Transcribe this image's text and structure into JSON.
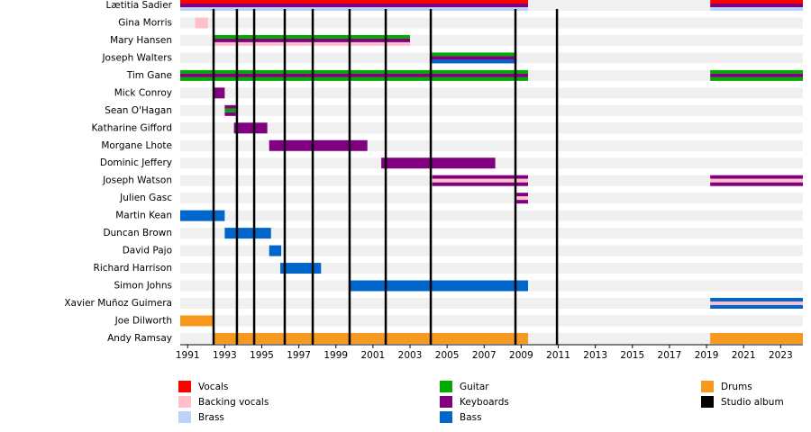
{
  "chart_data": {
    "type": "timeline",
    "xlim": [
      1990.6,
      2024.2
    ],
    "xticks": [
      1991,
      1993,
      1995,
      1997,
      1999,
      2001,
      2003,
      2005,
      2007,
      2009,
      2011,
      2013,
      2015,
      2017,
      2019,
      2021,
      2023
    ],
    "legend": [
      {
        "name": "Vocals",
        "color": "#ff0000"
      },
      {
        "name": "Backing vocals",
        "color": "#ffc0cb"
      },
      {
        "name": "Brass",
        "color": "#bcd2f7"
      },
      {
        "name": "Guitar",
        "color": "#00aa00"
      },
      {
        "name": "Keyboards",
        "color": "#800080"
      },
      {
        "name": "Bass",
        "color": "#0066cc"
      },
      {
        "name": "Drums",
        "color": "#f7991e"
      },
      {
        "name": "Studio album",
        "color": "#000000"
      }
    ],
    "albums": [
      1992.4,
      1993.66,
      1994.59,
      1996.24,
      1997.75,
      1999.74,
      2001.69,
      2004.12,
      2008.69,
      2010.93
    ],
    "members": [
      {
        "name": "Lætitia Sadier",
        "bars": [
          {
            "start": 1990.6,
            "end": 2009.37,
            "roles": [
              0,
              4,
              2
            ]
          },
          {
            "start": 2019.2,
            "end": 2024.2,
            "roles": [
              0,
              4,
              2
            ]
          }
        ]
      },
      {
        "name": "Gina Morris",
        "bars": [
          {
            "start": 1991.4,
            "end": 1992.1,
            "roles": [
              1
            ]
          }
        ]
      },
      {
        "name": "Mary Hansen",
        "bars": [
          {
            "start": 1992.4,
            "end": 2003.0,
            "roles": [
              3,
              4,
              1
            ]
          }
        ]
      },
      {
        "name": "Joseph Walters",
        "bars": [
          {
            "start": 2004.1,
            "end": 2008.75,
            "roles": [
              3,
              4,
              5
            ]
          }
        ]
      },
      {
        "name": "Tim Gane",
        "bars": [
          {
            "start": 1990.6,
            "end": 2009.37,
            "roles": [
              3,
              4,
              3
            ]
          },
          {
            "start": 2019.2,
            "end": 2024.2,
            "roles": [
              3,
              4,
              3
            ]
          }
        ]
      },
      {
        "name": "Mick Conroy",
        "bars": [
          {
            "start": 1992.4,
            "end": 1993.0,
            "roles": [
              4
            ]
          }
        ]
      },
      {
        "name": "Sean O'Hagan",
        "bars": [
          {
            "start": 1993.0,
            "end": 1993.6,
            "roles": [
              4,
              3,
              4
            ]
          }
        ]
      },
      {
        "name": "Katharine Gifford",
        "bars": [
          {
            "start": 1993.5,
            "end": 1995.3,
            "roles": [
              4
            ]
          }
        ]
      },
      {
        "name": "Morgane Lhote",
        "bars": [
          {
            "start": 1995.4,
            "end": 2000.7,
            "roles": [
              4
            ]
          }
        ]
      },
      {
        "name": "Dominic Jeffery",
        "bars": [
          {
            "start": 2001.45,
            "end": 2007.6,
            "roles": [
              4
            ]
          }
        ]
      },
      {
        "name": "Joseph Watson",
        "bars": [
          {
            "start": 2004.2,
            "end": 2009.37,
            "roles": [
              4,
              1,
              4
            ]
          },
          {
            "start": 2019.2,
            "end": 2024.2,
            "roles": [
              4,
              1,
              4
            ]
          }
        ]
      },
      {
        "name": "Julien Gasc",
        "bars": [
          {
            "start": 2008.75,
            "end": 2009.37,
            "roles": [
              4,
              1,
              4
            ]
          }
        ]
      },
      {
        "name": "Martin Kean",
        "bars": [
          {
            "start": 1990.6,
            "end": 1993.0,
            "roles": [
              5
            ]
          }
        ]
      },
      {
        "name": "Duncan Brown",
        "bars": [
          {
            "start": 1993.0,
            "end": 1995.5,
            "roles": [
              5
            ]
          }
        ]
      },
      {
        "name": "David Pajo",
        "bars": [
          {
            "start": 1995.4,
            "end": 1996.05,
            "roles": [
              5
            ]
          }
        ]
      },
      {
        "name": "Richard Harrison",
        "bars": [
          {
            "start": 1996.0,
            "end": 1998.2,
            "roles": [
              5
            ]
          }
        ]
      },
      {
        "name": "Simon Johns",
        "bars": [
          {
            "start": 1999.75,
            "end": 2009.37,
            "roles": [
              5
            ]
          }
        ]
      },
      {
        "name": "Xavier Muñoz Guimera",
        "bars": [
          {
            "start": 2019.2,
            "end": 2024.2,
            "roles": [
              5,
              1,
              5
            ]
          }
        ]
      },
      {
        "name": "Joe Dilworth",
        "bars": [
          {
            "start": 1990.6,
            "end": 1992.35,
            "roles": [
              6
            ]
          }
        ]
      },
      {
        "name": "Andy Ramsay",
        "bars": [
          {
            "start": 1992.4,
            "end": 2009.37,
            "roles": [
              6
            ]
          },
          {
            "start": 2019.2,
            "end": 2024.2,
            "roles": [
              6
            ]
          }
        ]
      }
    ]
  }
}
